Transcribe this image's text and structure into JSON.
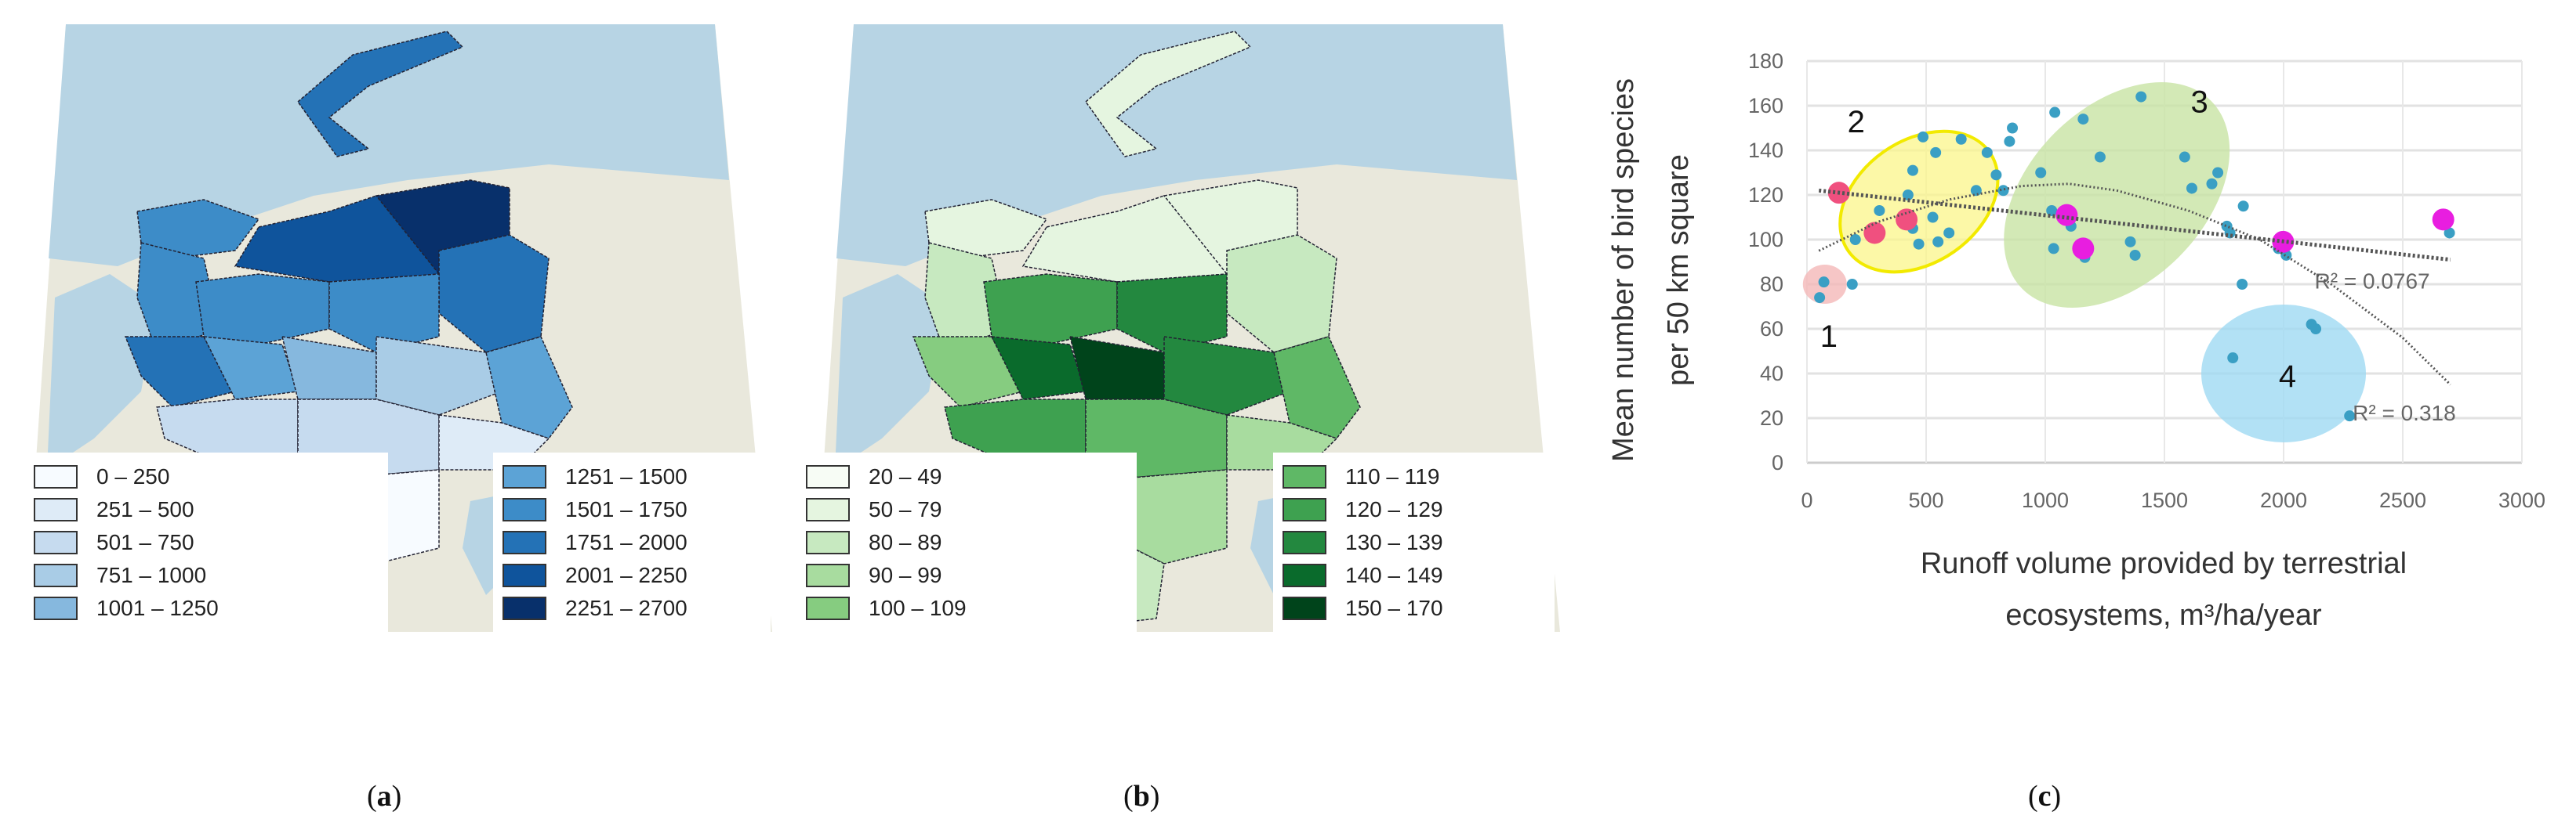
{
  "panel_a": {
    "caption_letter": "a",
    "legend_left": [
      {
        "label": "0 – 250",
        "color": "#f7fbff"
      },
      {
        "label": "251 – 500",
        "color": "#deebf7"
      },
      {
        "label": "501 – 750",
        "color": "#c6dbef"
      },
      {
        "label": "751 – 1000",
        "color": "#a9cce6"
      },
      {
        "label": "1001 – 1250",
        "color": "#86b8de"
      }
    ],
    "legend_right": [
      {
        "label": "1251 – 1500",
        "color": "#5ca3d6"
      },
      {
        "label": "1501 – 1750",
        "color": "#3d8cc8"
      },
      {
        "label": "1751 – 2000",
        "color": "#2472b6"
      },
      {
        "label": "2001 – 2250",
        "color": "#0f549c"
      },
      {
        "label": "2251 – 2700",
        "color": "#08306b"
      }
    ]
  },
  "panel_b": {
    "caption_letter": "b",
    "legend_left": [
      {
        "label": "20 – 49",
        "color": "#f7fcf5"
      },
      {
        "label": "50 – 79",
        "color": "#e5f5e0"
      },
      {
        "label": "80 – 89",
        "color": "#c7e9c0"
      },
      {
        "label": "90 – 99",
        "color": "#a8dc9f"
      },
      {
        "label": "100 – 109",
        "color": "#86cc80"
      }
    ],
    "legend_right": [
      {
        "label": "110 – 119",
        "color": "#5fb866"
      },
      {
        "label": "120 – 129",
        "color": "#3ea150"
      },
      {
        "label": "130 – 139",
        "color": "#23883f"
      },
      {
        "label": "140 – 149",
        "color": "#0a6b2c"
      },
      {
        "label": "150 – 170",
        "color": "#00441b"
      }
    ]
  },
  "panel_c": {
    "caption_letter": "c",
    "chart_data": {
      "type": "scatter",
      "xlabel_line1": "Runoff volume provided by terrestrial",
      "xlabel_line2": "ecosystems, m³/ha/year",
      "ylabel_line1": "Mean number of bird species",
      "ylabel_line2": "per 50 km square",
      "xlim": [
        0,
        3000
      ],
      "ylim": [
        0,
        180
      ],
      "xticks": [
        "0",
        "500",
        "1000",
        "1500",
        "2000",
        "2500",
        "3000"
      ],
      "yticks": [
        "0",
        "20",
        "40",
        "60",
        "80",
        "100",
        "120",
        "140",
        "160",
        "180"
      ],
      "grid": "horizontal and vertical",
      "series": [
        {
          "color": "#3a9fc4",
          "points": [
            [
              71,
              81
            ],
            [
              53,
              74
            ],
            [
              190,
              80
            ],
            [
              203,
              100
            ],
            [
              304,
              113
            ],
            [
              444,
              131
            ],
            [
              487,
              146
            ],
            [
              540,
              139
            ],
            [
              647,
              145
            ],
            [
              756,
              139
            ],
            [
              794,
              129
            ],
            [
              710,
              122
            ],
            [
              424,
              120
            ],
            [
              528,
              110
            ],
            [
              596,
              103
            ],
            [
              469,
              98
            ],
            [
              550,
              99
            ],
            [
              444,
              105
            ],
            [
              862,
              150
            ],
            [
              850,
              144
            ],
            [
              824,
              122
            ],
            [
              981,
              130
            ],
            [
              1040,
              157
            ],
            [
              1159,
              154
            ],
            [
              1230,
              137
            ],
            [
              1402,
              164
            ],
            [
              1585,
              137
            ],
            [
              1724,
              130
            ],
            [
              1699,
              125
            ],
            [
              1615,
              123
            ],
            [
              1831,
              115
            ],
            [
              1762,
              106
            ],
            [
              1775,
              103
            ],
            [
              1357,
              99
            ],
            [
              1377,
              93
            ],
            [
              1027,
              113
            ],
            [
              1035,
              96
            ],
            [
              1108,
              106
            ],
            [
              1166,
              92
            ],
            [
              1826,
              80
            ],
            [
              1978,
              96
            ],
            [
              2011,
              93
            ],
            [
              1787,
              47
            ],
            [
              2117,
              62
            ],
            [
              2135,
              60
            ],
            [
              2277,
              21
            ],
            [
              2696,
              103
            ]
          ]
        },
        {
          "color": "#f0507f",
          "points": [
            [
              134,
              121
            ],
            [
              284,
              103
            ],
            [
              418,
              109
            ]
          ]
        },
        {
          "color": "#e81ee0",
          "points": [
            [
              1090,
              111
            ],
            [
              1159,
              96
            ],
            [
              1998,
              99
            ],
            [
              2670,
              109
            ]
          ]
        }
      ],
      "trendlines": [
        {
          "type": "linear",
          "label": "R² = 0.0767",
          "points": [
            [
              50,
              122
            ],
            [
              2700,
              91
            ]
          ]
        },
        {
          "type": "polynomial",
          "label": "R² = 0.318",
          "points": [
            [
              50,
              95
            ],
            [
              300,
              108
            ],
            [
              600,
              118
            ],
            [
              900,
              124
            ],
            [
              1100,
              125
            ],
            [
              1300,
              122
            ],
            [
              1600,
              113
            ],
            [
              1900,
              100
            ],
            [
              2200,
              80
            ],
            [
              2500,
              56
            ],
            [
              2700,
              35
            ]
          ]
        }
      ],
      "groups": [
        {
          "label": "1",
          "color": "#f4b8b8"
        },
        {
          "label": "2",
          "color": "#fbf58a"
        },
        {
          "label": "3",
          "color": "#c8e3a4"
        },
        {
          "label": "4",
          "color": "#9fdaf2"
        }
      ]
    }
  }
}
